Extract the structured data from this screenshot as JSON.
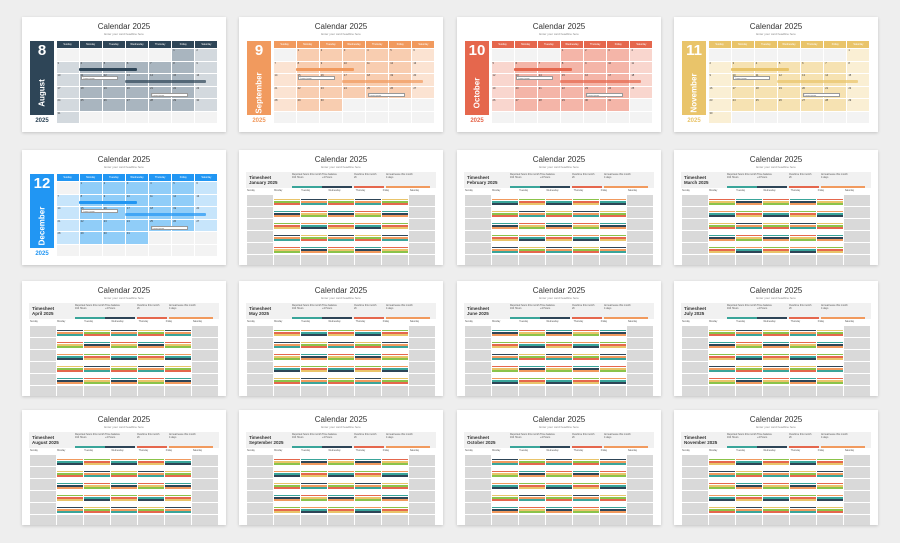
{
  "calendar_title": "Calendar 2025",
  "subtitle": "Enter your card headline here",
  "year": "2025",
  "weekdays": [
    "Sunday",
    "Monday",
    "Tuesday",
    "Wednesday",
    "Thursday",
    "Friday",
    "Saturday"
  ],
  "month_slides": [
    {
      "num": "8",
      "name": "August",
      "color": "#2e4557",
      "hdr": "#2e4557",
      "cell": "#a9b5bf",
      "light": "#d3d9de",
      "bar": "#2e4557",
      "days": [
        "",
        "",
        "",
        "",
        "",
        "1",
        "2",
        "3",
        "4",
        "5",
        "6",
        "7",
        "8",
        "9",
        "10",
        "11",
        "12",
        "13",
        "14",
        "15",
        "16",
        "17",
        "18",
        "19",
        "20",
        "21",
        "22",
        "23",
        "24",
        "25",
        "26",
        "27",
        "28",
        "29",
        "30",
        "31"
      ],
      "note": "Lorem ipsum"
    },
    {
      "num": "9",
      "name": "September",
      "color": "#f19a5e",
      "hdr": "#f19a5e",
      "cell": "#f8cdb0",
      "light": "#fbe3d2",
      "bar": "#f19a5e",
      "days": [
        "",
        "1",
        "2",
        "3",
        "4",
        "5",
        "6",
        "7",
        "8",
        "9",
        "10",
        "11",
        "12",
        "13",
        "14",
        "15",
        "16",
        "17",
        "18",
        "19",
        "20",
        "21",
        "22",
        "23",
        "24",
        "25",
        "26",
        "27",
        "28",
        "29",
        "30"
      ],
      "note": "Lorem ipsum"
    },
    {
      "num": "10",
      "name": "October",
      "color": "#e5674d",
      "hdr": "#e5674d",
      "cell": "#f4b5a8",
      "light": "#f9d6ce",
      "bar": "#e5674d",
      "days": [
        "",
        "",
        "",
        "1",
        "2",
        "3",
        "4",
        "5",
        "6",
        "7",
        "8",
        "9",
        "10",
        "11",
        "12",
        "13",
        "14",
        "15",
        "16",
        "17",
        "18",
        "19",
        "20",
        "21",
        "22",
        "23",
        "24",
        "25",
        "26",
        "27",
        "28",
        "29",
        "30",
        "31"
      ],
      "note": "Lorem ipsum"
    },
    {
      "num": "11",
      "name": "November",
      "color": "#e9c46a",
      "hdr": "#e9c46a",
      "cell": "#f6e2b2",
      "light": "#faefd4",
      "bar": "#e9c46a",
      "days": [
        "",
        "",
        "",
        "",
        "",
        "",
        "1",
        "2",
        "3",
        "4",
        "5",
        "6",
        "7",
        "8",
        "9",
        "10",
        "11",
        "12",
        "13",
        "14",
        "15",
        "16",
        "17",
        "18",
        "19",
        "20",
        "21",
        "22",
        "23",
        "24",
        "25",
        "26",
        "27",
        "28",
        "29",
        "30"
      ],
      "note": "Lorem ipsum"
    },
    {
      "num": "12",
      "name": "December",
      "color": "#2196f3",
      "hdr": "#2196f3",
      "cell": "#90cdf8",
      "light": "#c7e5fb",
      "bar": "#2196f3",
      "days": [
        "",
        "1",
        "2",
        "3",
        "4",
        "5",
        "6",
        "7",
        "8",
        "9",
        "10",
        "11",
        "12",
        "13",
        "14",
        "15",
        "16",
        "17",
        "18",
        "19",
        "20",
        "21",
        "22",
        "23",
        "24",
        "25",
        "26",
        "27",
        "28",
        "29",
        "30",
        "31"
      ],
      "note": "Lorem ipsum"
    }
  ],
  "timesheet_label": "Timesheet",
  "stats": [
    "Reported hours this month",
    "Time balance",
    "Overtime this month",
    "Annual leave this month"
  ],
  "stat_values": [
    "164 Hours",
    "+4 Hours",
    "2h",
    "4 days"
  ],
  "timesheet_months": [
    "January 2025",
    "February 2025",
    "March 2025",
    "April 2025",
    "May 2025",
    "June 2025",
    "July 2025",
    "August 2025",
    "September 2025",
    "October 2025",
    "November 2025"
  ],
  "stripe_colors": [
    "#2e4557",
    "#e5674d",
    "#f19a5e",
    "#e9c46a",
    "#3aa59a",
    "#8bc34a"
  ]
}
